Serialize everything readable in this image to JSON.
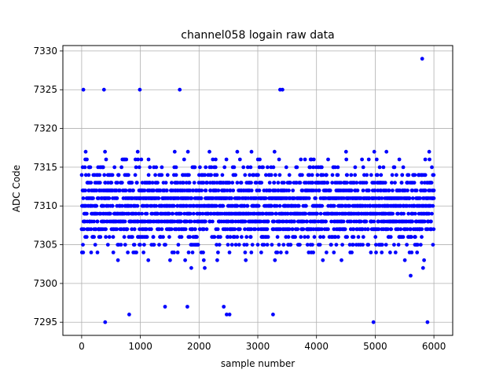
{
  "chart_data": {
    "type": "scatter",
    "title": "channel058 logain raw data",
    "xlabel": "sample number",
    "ylabel": "ADC Code",
    "xlim": [
      -320,
      6320
    ],
    "ylim": [
      7293.3,
      7330.7
    ],
    "xticks": [
      0,
      1000,
      2000,
      3000,
      4000,
      5000,
      6000
    ],
    "yticks": [
      7295,
      7300,
      7305,
      7310,
      7315,
      7320,
      7325,
      7330
    ],
    "grid": true,
    "marker_color": "#0000ff",
    "series": [
      {
        "name": "",
        "n_samples": 6000,
        "x_range": [
          0,
          5999
        ],
        "typical_range": [
          7301,
          7319
        ],
        "outliers": [
          {
            "x": 30,
            "y": 7325
          },
          {
            "x": 380,
            "y": 7325
          },
          {
            "x": 400,
            "y": 7295
          },
          {
            "x": 810,
            "y": 7296
          },
          {
            "x": 990,
            "y": 7325
          },
          {
            "x": 1420,
            "y": 7297
          },
          {
            "x": 1670,
            "y": 7325
          },
          {
            "x": 1800,
            "y": 7297
          },
          {
            "x": 2420,
            "y": 7297
          },
          {
            "x": 2470,
            "y": 7296
          },
          {
            "x": 2520,
            "y": 7296
          },
          {
            "x": 3260,
            "y": 7296
          },
          {
            "x": 3380,
            "y": 7325
          },
          {
            "x": 3420,
            "y": 7325
          },
          {
            "x": 4970,
            "y": 7295
          },
          {
            "x": 5800,
            "y": 7329
          },
          {
            "x": 5890,
            "y": 7295
          }
        ]
      }
    ]
  }
}
